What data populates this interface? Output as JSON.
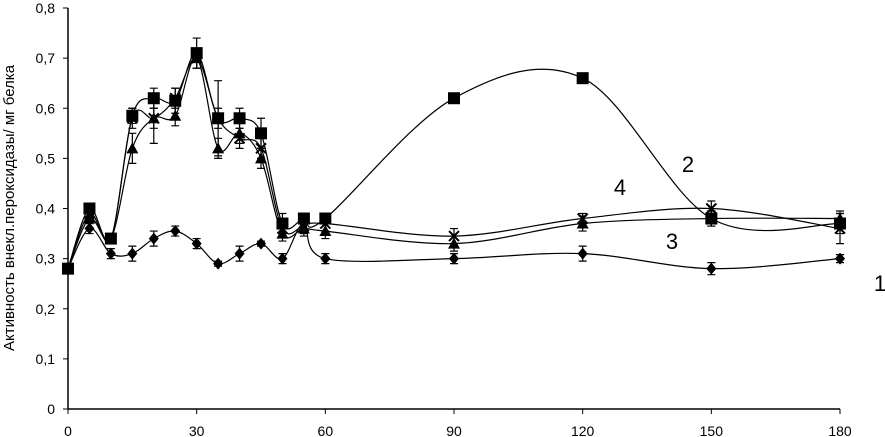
{
  "chart_data": {
    "type": "line",
    "title": "",
    "xlabel": "",
    "ylabel": "Активность внекл.пероксидазы/ мг белка",
    "xlim": [
      0,
      180
    ],
    "ylim": [
      0,
      0.8
    ],
    "xticks": [
      0,
      30,
      60,
      90,
      120,
      150,
      180
    ],
    "xtick_labels": [
      "0",
      "30",
      "60",
      "90",
      "120",
      "150",
      "180"
    ],
    "yticks": [
      0,
      0.1,
      0.2,
      0.3,
      0.4,
      0.5,
      0.6,
      0.7,
      0.8
    ],
    "ytick_labels": [
      "0",
      "0,1",
      "0,2",
      "0,3",
      "0,4",
      "0,5",
      "0,6",
      "0,7",
      "0,8"
    ],
    "grid": false,
    "series": [
      {
        "name": "1",
        "marker": "diamond",
        "x": [
          0,
          5,
          10,
          15,
          20,
          25,
          30,
          35,
          40,
          45,
          50,
          55,
          60,
          90,
          120,
          150,
          180
        ],
        "values": [
          0.28,
          0.36,
          0.31,
          0.31,
          0.34,
          0.355,
          0.33,
          0.29,
          0.31,
          0.33,
          0.3,
          0.37,
          0.3,
          0.3,
          0.31,
          0.28,
          0.3
        ],
        "errors": [
          0.01,
          0.01,
          0.01,
          0.015,
          0.015,
          0.01,
          0.01,
          0.005,
          0.015,
          0.005,
          0.01,
          0.015,
          0.01,
          0.01,
          0.015,
          0.012,
          0.008
        ]
      },
      {
        "name": "2",
        "marker": "square",
        "x": [
          0,
          5,
          10,
          15,
          20,
          25,
          30,
          35,
          40,
          45,
          50,
          55,
          60,
          90,
          120,
          150,
          180
        ],
        "values": [
          0.28,
          0.4,
          0.34,
          0.585,
          0.62,
          0.615,
          0.71,
          0.58,
          0.58,
          0.55,
          0.37,
          0.38,
          0.38,
          0.62,
          0.66,
          0.38,
          0.37
        ],
        "errors": [
          0.01,
          0.01,
          0.01,
          0.015,
          0.02,
          0.025,
          0.03,
          0.075,
          0.02,
          0.03,
          0.02,
          0.01,
          0.01,
          0.005,
          0.005,
          0.015,
          0.02
        ]
      },
      {
        "name": "3",
        "marker": "triangle",
        "x": [
          0,
          5,
          10,
          15,
          20,
          25,
          30,
          35,
          40,
          45,
          50,
          55,
          60,
          90,
          120,
          150,
          180
        ],
        "values": [
          0.28,
          0.38,
          0.34,
          0.52,
          0.58,
          0.585,
          0.7,
          0.52,
          0.55,
          0.5,
          0.35,
          0.36,
          0.355,
          0.33,
          0.37,
          0.38,
          0.38
        ],
        "errors": [
          0.01,
          0.01,
          0.01,
          0.03,
          0.05,
          0.02,
          0.02,
          0.02,
          0.02,
          0.02,
          0.015,
          0.015,
          0.015,
          0.015,
          0.015,
          0.015,
          0.015
        ]
      },
      {
        "name": "4",
        "marker": "x",
        "x": [
          0,
          5,
          10,
          15,
          20,
          25,
          30,
          35,
          40,
          45,
          50,
          55,
          60,
          90,
          120,
          150,
          180
        ],
        "values": [
          0.28,
          0.39,
          0.34,
          0.58,
          0.58,
          0.62,
          0.7,
          0.58,
          0.54,
          0.52,
          0.36,
          0.365,
          0.37,
          0.345,
          0.38,
          0.4,
          0.36
        ],
        "errors": [
          0.01,
          0.01,
          0.01,
          0.02,
          0.02,
          0.02,
          0.02,
          0.02,
          0.02,
          0.02,
          0.015,
          0.015,
          0.015,
          0.015,
          0.01,
          0.015,
          0.03
        ]
      }
    ],
    "curve_labels": [
      {
        "text": "1",
        "series": "1"
      },
      {
        "text": "2",
        "series": "2"
      },
      {
        "text": "3",
        "series": "3"
      },
      {
        "text": "4",
        "series": "4"
      }
    ]
  }
}
